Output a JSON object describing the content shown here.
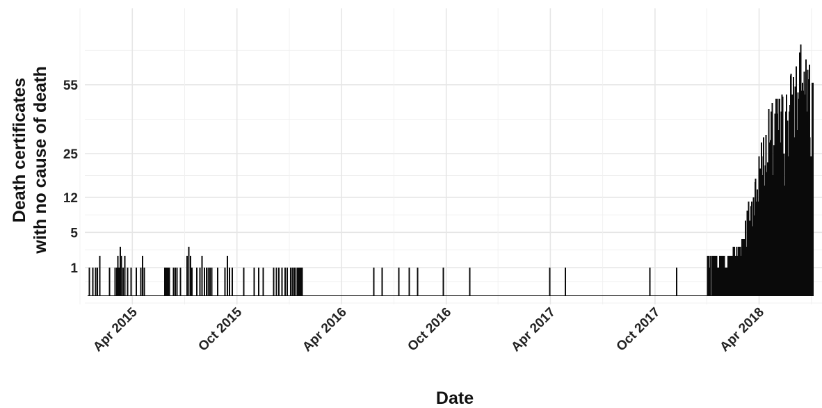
{
  "chart_data": {
    "type": "bar",
    "title": "",
    "xlabel": "Date",
    "ylabel_lines": [
      "Death certificates",
      "with no cause of death"
    ],
    "y_scale": "sqrt",
    "ylim": [
      0,
      100
    ],
    "y_ticks": [
      1,
      5,
      12,
      25,
      55
    ],
    "x_ticks": [
      {
        "date": "2015-04-01",
        "label": "Apr 2015"
      },
      {
        "date": "2015-10-01",
        "label": "Oct 2015"
      },
      {
        "date": "2016-04-01",
        "label": "Apr 2016"
      },
      {
        "date": "2016-10-01",
        "label": "Oct 2016"
      },
      {
        "date": "2017-04-01",
        "label": "Apr 2017"
      },
      {
        "date": "2017-10-01",
        "label": "Oct 2017"
      },
      {
        "date": "2018-04-01",
        "label": "Apr 2018"
      }
    ],
    "xlim": [
      "2015-01-08",
      "2018-07-20"
    ],
    "grid": true,
    "bar_color": "#0a0a0a",
    "series": [
      {
        "baseline_value": 0,
        "period": [
          "2015-01-14",
          "2018-07-04"
        ],
        "spikes": [
          [
            "2015-01-16",
            1
          ],
          [
            "2015-01-22",
            1
          ],
          [
            "2015-01-27",
            1
          ],
          [
            "2015-01-30",
            1
          ],
          [
            "2015-02-03",
            2
          ],
          [
            "2015-02-20",
            1
          ],
          [
            "2015-03-02",
            1
          ],
          [
            "2015-03-05",
            1
          ],
          [
            "2015-03-07",
            2
          ],
          [
            "2015-03-09",
            1
          ],
          [
            "2015-03-11",
            3
          ],
          [
            "2015-03-13",
            2
          ],
          [
            "2015-03-16",
            1
          ],
          [
            "2015-03-19",
            2
          ],
          [
            "2015-03-24",
            1
          ],
          [
            "2015-03-30",
            1
          ],
          [
            "2015-04-08",
            1
          ],
          [
            "2015-04-16",
            1
          ],
          [
            "2015-04-19",
            2
          ],
          [
            "2015-04-22",
            1
          ],
          [
            "2015-05-28",
            1
          ],
          [
            "2015-05-30",
            1
          ],
          [
            "2015-06-01",
            1
          ],
          [
            "2015-06-03",
            1
          ],
          [
            "2015-06-05",
            1
          ],
          [
            "2015-06-12",
            1
          ],
          [
            "2015-06-15",
            1
          ],
          [
            "2015-06-18",
            1
          ],
          [
            "2015-06-24",
            1
          ],
          [
            "2015-07-06",
            2
          ],
          [
            "2015-07-09",
            3
          ],
          [
            "2015-07-12",
            2
          ],
          [
            "2015-07-14",
            1
          ],
          [
            "2015-07-23",
            1
          ],
          [
            "2015-07-28",
            1
          ],
          [
            "2015-08-01",
            2
          ],
          [
            "2015-08-05",
            1
          ],
          [
            "2015-08-09",
            1
          ],
          [
            "2015-08-12",
            1
          ],
          [
            "2015-08-15",
            1
          ],
          [
            "2015-08-18",
            1
          ],
          [
            "2015-08-28",
            1
          ],
          [
            "2015-09-10",
            1
          ],
          [
            "2015-09-14",
            2
          ],
          [
            "2015-09-18",
            1
          ],
          [
            "2015-09-23",
            1
          ],
          [
            "2015-10-13",
            1
          ],
          [
            "2015-10-31",
            1
          ],
          [
            "2015-11-08",
            1
          ],
          [
            "2015-11-16",
            1
          ],
          [
            "2015-12-04",
            1
          ],
          [
            "2015-12-09",
            1
          ],
          [
            "2015-12-13",
            1
          ],
          [
            "2015-12-19",
            1
          ],
          [
            "2015-12-24",
            1
          ],
          [
            "2015-12-28",
            1
          ],
          [
            "2016-01-03",
            1
          ],
          [
            "2016-01-06",
            1
          ],
          [
            "2016-01-09",
            1
          ],
          [
            "2016-01-12",
            1
          ],
          [
            "2016-01-15",
            1
          ],
          [
            "2016-01-17",
            1
          ],
          [
            "2016-01-19",
            1
          ],
          [
            "2016-01-21",
            1
          ],
          [
            "2016-01-23",
            1
          ],
          [
            "2016-05-27",
            1
          ],
          [
            "2016-06-11",
            1
          ],
          [
            "2016-07-10",
            1
          ],
          [
            "2016-07-28",
            1
          ],
          [
            "2016-08-12",
            1
          ],
          [
            "2016-09-26",
            1
          ],
          [
            "2016-11-11",
            1
          ],
          [
            "2017-03-31",
            1
          ],
          [
            "2017-04-27",
            1
          ],
          [
            "2017-09-22",
            1
          ],
          [
            "2017-11-08",
            1
          ]
        ],
        "ramp": [
          [
            "2018-01-01",
            2
          ],
          [
            "2018-01-20",
            2
          ],
          [
            "2018-02-10",
            2
          ],
          [
            "2018-02-25",
            4
          ],
          [
            "2018-03-05",
            7
          ],
          [
            "2018-03-15",
            12
          ],
          [
            "2018-03-25",
            20
          ],
          [
            "2018-04-05",
            32
          ],
          [
            "2018-04-15",
            42
          ],
          [
            "2018-04-25",
            48
          ],
          [
            "2018-05-05",
            52
          ],
          [
            "2018-05-15",
            56
          ],
          [
            "2018-05-25",
            64
          ],
          [
            "2018-06-05",
            75
          ],
          [
            "2018-06-15",
            80
          ],
          [
            "2018-06-25",
            74
          ],
          [
            "2018-07-04",
            70
          ]
        ]
      }
    ]
  }
}
